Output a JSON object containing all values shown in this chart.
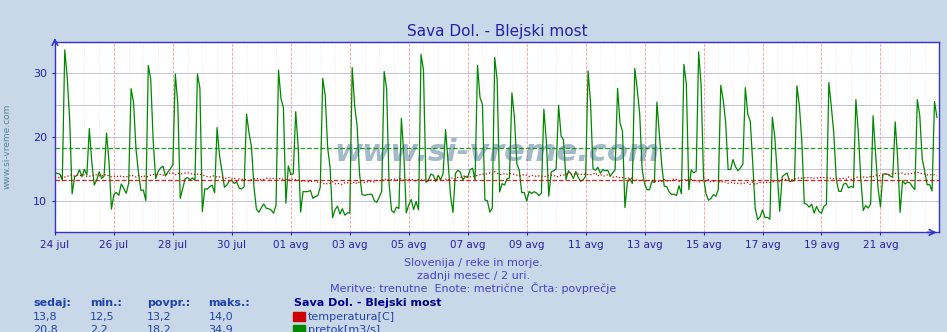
{
  "title": "Sava Dol. - Blejski most",
  "title_color": "#2222aa",
  "title_fontsize": 11,
  "fig_bg_color": "#c8d8e8",
  "plot_bg_color": "#ffffff",
  "xlim": [
    0,
    360
  ],
  "ylim": [
    5,
    35
  ],
  "yticks": [
    10,
    20,
    30
  ],
  "axis_color": "#3333cc",
  "tick_label_color": "#2222aa",
  "grid_h_color": "#aaaaff",
  "grid_v_color": "#ffaaaa",
  "temp_color": "#cc0000",
  "flow_color": "#008800",
  "temp_avg": 13.2,
  "flow_avg": 18.2,
  "watermark": "www.si-vreme.com",
  "watermark_color": "#336688",
  "watermark_alpha": 0.45,
  "watermark_fontsize": 22,
  "left_label": "www.si-vreme.com",
  "left_label_color": "#336688",
  "subtitle1": "Slovenija / reke in morje.",
  "subtitle2": "zadnji mesec / 2 uri.",
  "subtitle3": "Meritve: trenutne  Enote: metrične  Črta: povprečje",
  "subtitle_color": "#4444cc",
  "subtitle_fontsize": 8,
  "legend_title": "Sava Dol. - Blejski most",
  "legend_title_color": "#000088",
  "legend_color": "#2244aa",
  "table_headers": [
    "sedaj:",
    "min.:",
    "povpr.:",
    "maks.:"
  ],
  "temp_row": [
    "13,8",
    "12,5",
    "13,2",
    "14,0"
  ],
  "flow_row": [
    "20,8",
    "2,2",
    "18,2",
    "34,9"
  ],
  "temp_label": "temperatura[C]",
  "flow_label": "pretok[m3/s]",
  "x_tick_labels": [
    "24 jul",
    "26 jul",
    "28 jul",
    "30 jul",
    "01 avg",
    "03 avg",
    "05 avg",
    "07 avg",
    "09 avg",
    "11 avg",
    "13 avg",
    "15 avg",
    "17 avg",
    "19 avg",
    "21 avg"
  ],
  "x_tick_positions": [
    0,
    24,
    48,
    72,
    96,
    120,
    144,
    168,
    192,
    216,
    240,
    264,
    288,
    312,
    336
  ]
}
